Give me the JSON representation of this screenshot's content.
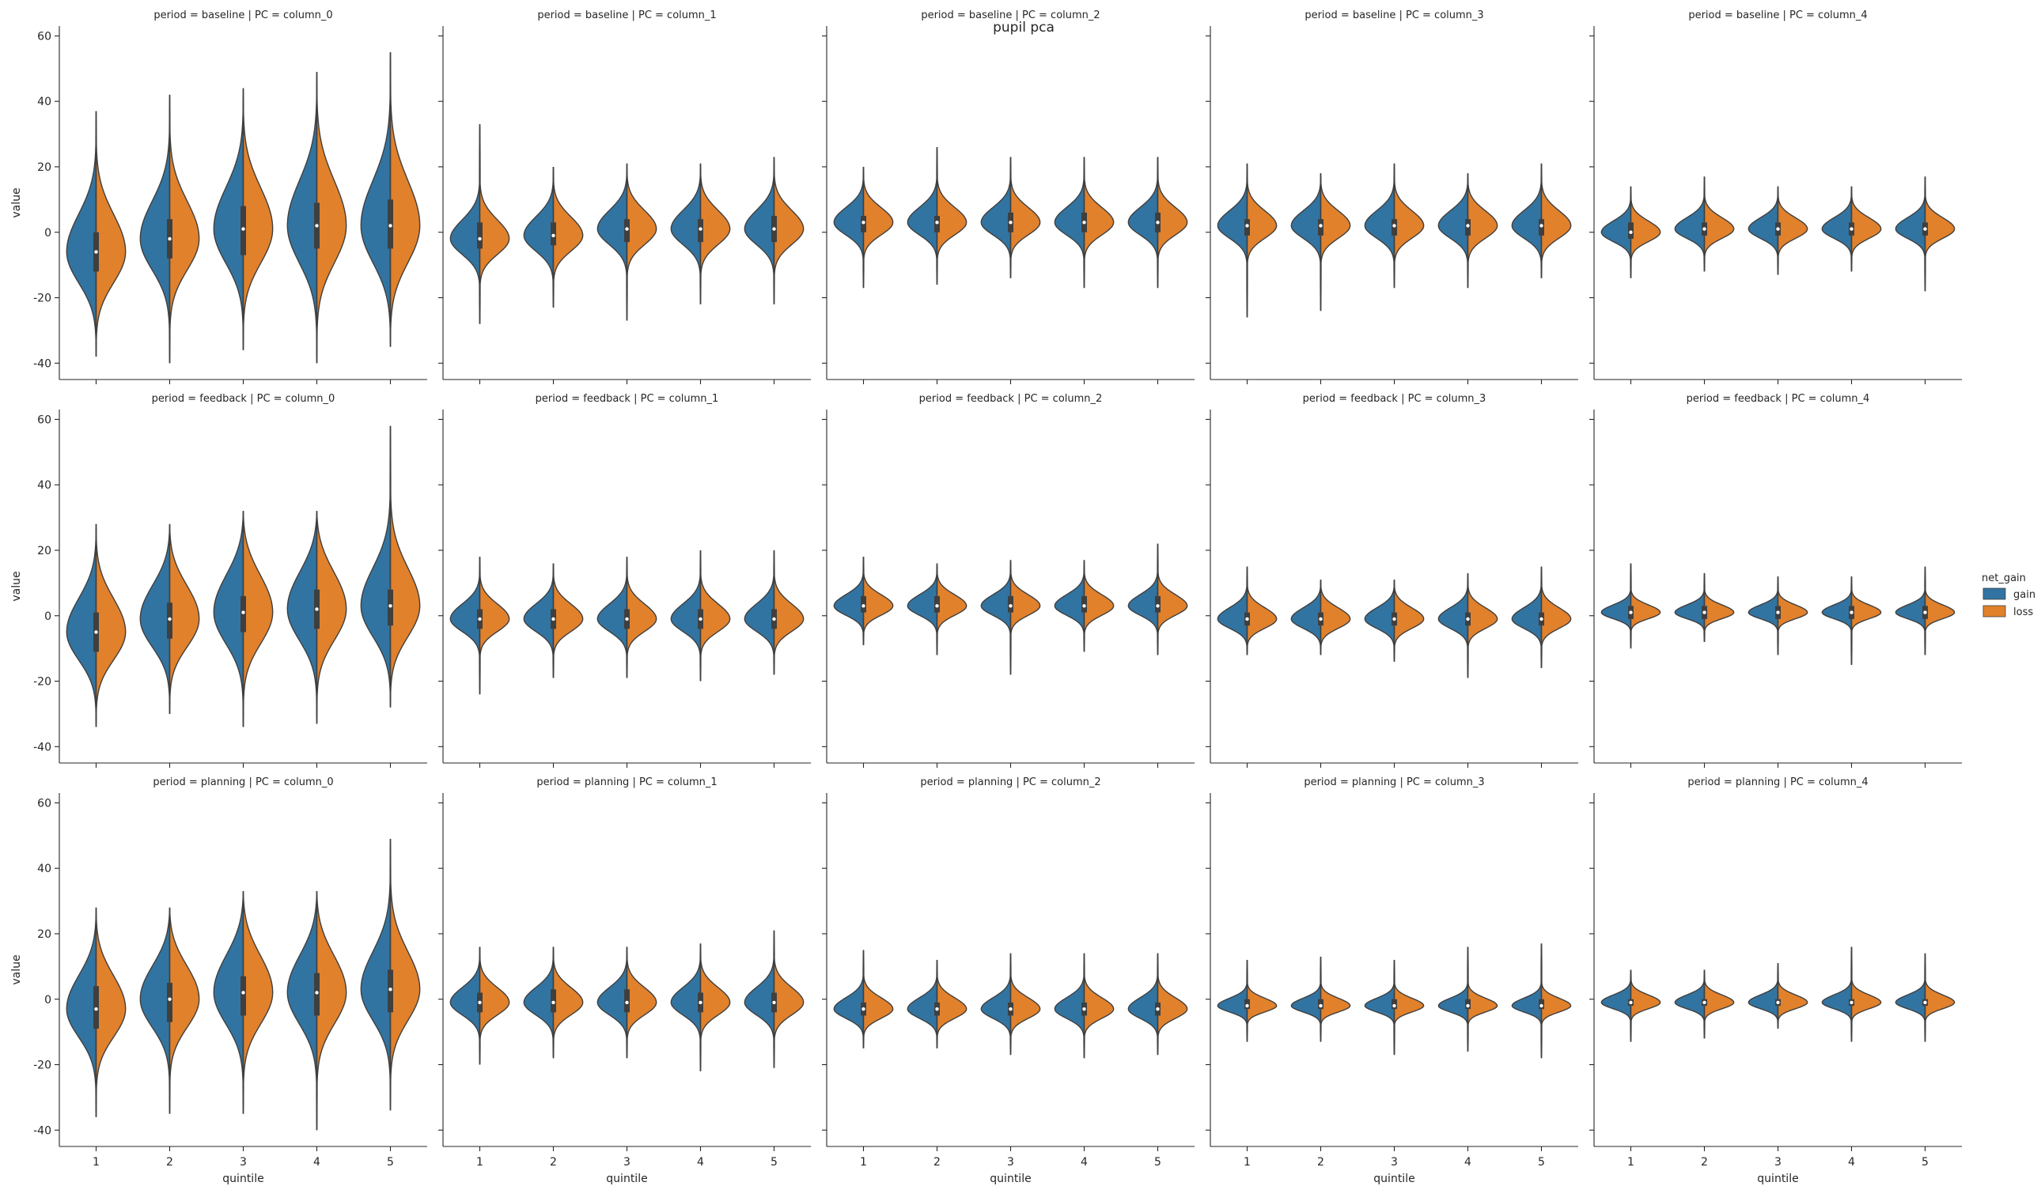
{
  "figure": {
    "suptitle": "pupil pca"
  },
  "legend": {
    "title": "net_gain",
    "entries": [
      {
        "label": "gain",
        "color": "#3274a1"
      },
      {
        "label": "loss",
        "color": "#e1812c"
      }
    ]
  },
  "axis_labels": {
    "x": "quintile",
    "y": "value"
  },
  "chart_data": {
    "type": "violin",
    "split": true,
    "hue": "net_gain",
    "hue_levels": [
      "gain",
      "loss"
    ],
    "colors": {
      "gain": "#3274a1",
      "loss": "#e1812c"
    },
    "categories": [
      "1",
      "2",
      "3",
      "4",
      "5"
    ],
    "xlabel": "quintile",
    "ylabel": "value",
    "ylim": [
      -45,
      63
    ],
    "yticks": [
      -40,
      -20,
      0,
      20,
      40,
      60
    ],
    "rows": [
      "baseline",
      "feedback",
      "planning"
    ],
    "cols": [
      "column_0",
      "column_1",
      "column_2",
      "column_3",
      "column_4"
    ],
    "panels": [
      {
        "title": "period = baseline | PC = column_0",
        "min": [
          -38,
          -40,
          -36,
          -40,
          -35
        ],
        "max": [
          37,
          42,
          44,
          49,
          55
        ],
        "median": [
          -6,
          -2,
          1,
          2,
          2
        ],
        "q1": [
          -12,
          -8,
          -7,
          -5,
          -5
        ],
        "q3": [
          0,
          4,
          8,
          9,
          10
        ],
        "spread": [
          10,
          10,
          11,
          12,
          12
        ]
      },
      {
        "title": "period = baseline | PC = column_1",
        "min": [
          -28,
          -23,
          -27,
          -22,
          -22
        ],
        "max": [
          33,
          20,
          21,
          21,
          23
        ],
        "median": [
          -2,
          -1,
          1,
          1,
          1
        ],
        "q1": [
          -5,
          -4,
          -3,
          -3,
          -3
        ],
        "q3": [
          3,
          3,
          4,
          4,
          5
        ],
        "spread": [
          5,
          5,
          5,
          5,
          5
        ]
      },
      {
        "title": "period = baseline | PC = column_2",
        "min": [
          -17,
          -16,
          -14,
          -17,
          -17
        ],
        "max": [
          20,
          26,
          23,
          23,
          23
        ],
        "median": [
          3,
          3,
          3,
          3,
          3
        ],
        "q1": [
          0,
          0,
          0,
          0,
          0
        ],
        "q3": [
          5,
          5,
          6,
          6,
          6
        ],
        "spread": [
          4,
          4,
          4,
          4,
          4
        ]
      },
      {
        "title": "period = baseline | PC = column_3",
        "min": [
          -26,
          -24,
          -17,
          -17,
          -14
        ],
        "max": [
          21,
          18,
          21,
          18,
          21
        ],
        "median": [
          2,
          2,
          2,
          2,
          2
        ],
        "q1": [
          -1,
          -1,
          -1,
          -1,
          -1
        ],
        "q3": [
          4,
          4,
          4,
          4,
          4
        ],
        "spread": [
          4,
          4,
          4,
          4,
          4
        ]
      },
      {
        "title": "period = baseline | PC = column_4",
        "min": [
          -14,
          -12,
          -13,
          -12,
          -18
        ],
        "max": [
          14,
          17,
          14,
          14,
          17
        ],
        "median": [
          0,
          1,
          1,
          1,
          1
        ],
        "q1": [
          -2,
          -1,
          -1,
          -1,
          -1
        ],
        "q3": [
          3,
          3,
          3,
          3,
          3
        ],
        "spread": [
          3,
          3,
          3,
          3,
          3
        ]
      },
      {
        "title": "period = feedback | PC = column_0",
        "min": [
          -34,
          -30,
          -34,
          -33,
          -28
        ],
        "max": [
          28,
          28,
          32,
          32,
          58
        ],
        "median": [
          -5,
          -1,
          1,
          2,
          3
        ],
        "q1": [
          -11,
          -7,
          -5,
          -4,
          -3
        ],
        "q3": [
          1,
          4,
          6,
          8,
          8
        ],
        "spread": [
          9,
          9,
          10,
          10,
          10
        ]
      },
      {
        "title": "period = feedback | PC = column_1",
        "min": [
          -24,
          -19,
          -19,
          -20,
          -18
        ],
        "max": [
          18,
          16,
          18,
          20,
          20
        ],
        "median": [
          -1,
          -1,
          -1,
          -1,
          -1
        ],
        "q1": [
          -4,
          -4,
          -4,
          -4,
          -4
        ],
        "q3": [
          2,
          2,
          2,
          2,
          2
        ],
        "spread": [
          4,
          4,
          4,
          4,
          4
        ]
      },
      {
        "title": "period = feedback | PC = column_2",
        "min": [
          -9,
          -12,
          -18,
          -11,
          -12
        ],
        "max": [
          18,
          16,
          17,
          17,
          22
        ],
        "median": [
          3,
          3,
          3,
          3,
          3
        ],
        "q1": [
          1,
          1,
          1,
          1,
          1
        ],
        "q3": [
          6,
          6,
          6,
          6,
          6
        ],
        "spread": [
          3,
          3,
          3,
          3,
          3
        ]
      },
      {
        "title": "period = feedback | PC = column_3",
        "min": [
          -12,
          -12,
          -14,
          -19,
          -16
        ],
        "max": [
          15,
          11,
          11,
          13,
          15
        ],
        "median": [
          -1,
          -1,
          -1,
          -1,
          -1
        ],
        "q1": [
          -3,
          -3,
          -3,
          -3,
          -3
        ],
        "q3": [
          1,
          1,
          1,
          1,
          1
        ],
        "spread": [
          3,
          3,
          3,
          3,
          3
        ]
      },
      {
        "title": "period = feedback | PC = column_4",
        "min": [
          -10,
          -8,
          -12,
          -15,
          -12
        ],
        "max": [
          16,
          13,
          12,
          12,
          15
        ],
        "median": [
          1,
          1,
          1,
          1,
          1
        ],
        "q1": [
          -1,
          -1,
          -1,
          -1,
          -1
        ],
        "q3": [
          3,
          3,
          3,
          3,
          3
        ],
        "spread": [
          2,
          2,
          2,
          2,
          2
        ]
      },
      {
        "title": "period = planning | PC = column_0",
        "min": [
          -36,
          -35,
          -35,
          -40,
          -34
        ],
        "max": [
          28,
          28,
          33,
          33,
          49
        ],
        "median": [
          -3,
          0,
          2,
          2,
          3
        ],
        "q1": [
          -9,
          -7,
          -5,
          -5,
          -4
        ],
        "q3": [
          4,
          5,
          7,
          8,
          9
        ],
        "spread": [
          9,
          9,
          10,
          10,
          10
        ]
      },
      {
        "title": "period = planning | PC = column_1",
        "min": [
          -20,
          -18,
          -18,
          -22,
          -21
        ],
        "max": [
          16,
          16,
          16,
          17,
          21
        ],
        "median": [
          -1,
          -1,
          -1,
          -1,
          -1
        ],
        "q1": [
          -4,
          -4,
          -4,
          -4,
          -4
        ],
        "q3": [
          2,
          3,
          3,
          2,
          2
        ],
        "spread": [
          4,
          4,
          4,
          4,
          4
        ]
      },
      {
        "title": "period = planning | PC = column_2",
        "min": [
          -15,
          -15,
          -17,
          -18,
          -17
        ],
        "max": [
          15,
          12,
          14,
          14,
          14
        ],
        "median": [
          -3,
          -3,
          -3,
          -3,
          -3
        ],
        "q1": [
          -5,
          -5,
          -5,
          -5,
          -5
        ],
        "q3": [
          -1,
          -1,
          -1,
          -1,
          -1
        ],
        "spread": [
          3,
          3,
          3,
          3,
          3
        ]
      },
      {
        "title": "period = planning | PC = column_3",
        "min": [
          -13,
          -13,
          -17,
          -16,
          -18
        ],
        "max": [
          12,
          13,
          12,
          16,
          17
        ],
        "median": [
          -2,
          -2,
          -2,
          -2,
          -2
        ],
        "q1": [
          -3,
          -3,
          -3,
          -3,
          -3
        ],
        "q3": [
          0,
          0,
          0,
          0,
          0
        ],
        "spread": [
          2,
          2,
          2,
          2,
          2
        ]
      },
      {
        "title": "period = planning | PC = column_4",
        "min": [
          -13,
          -12,
          -9,
          -13,
          -13
        ],
        "max": [
          9,
          9,
          11,
          16,
          14
        ],
        "median": [
          -1,
          -1,
          -1,
          -1,
          -1
        ],
        "q1": [
          -2,
          -2,
          -2,
          -2,
          -2
        ],
        "q3": [
          0,
          0,
          0,
          0,
          0
        ],
        "spread": [
          2,
          2,
          2,
          2,
          2
        ]
      }
    ]
  }
}
